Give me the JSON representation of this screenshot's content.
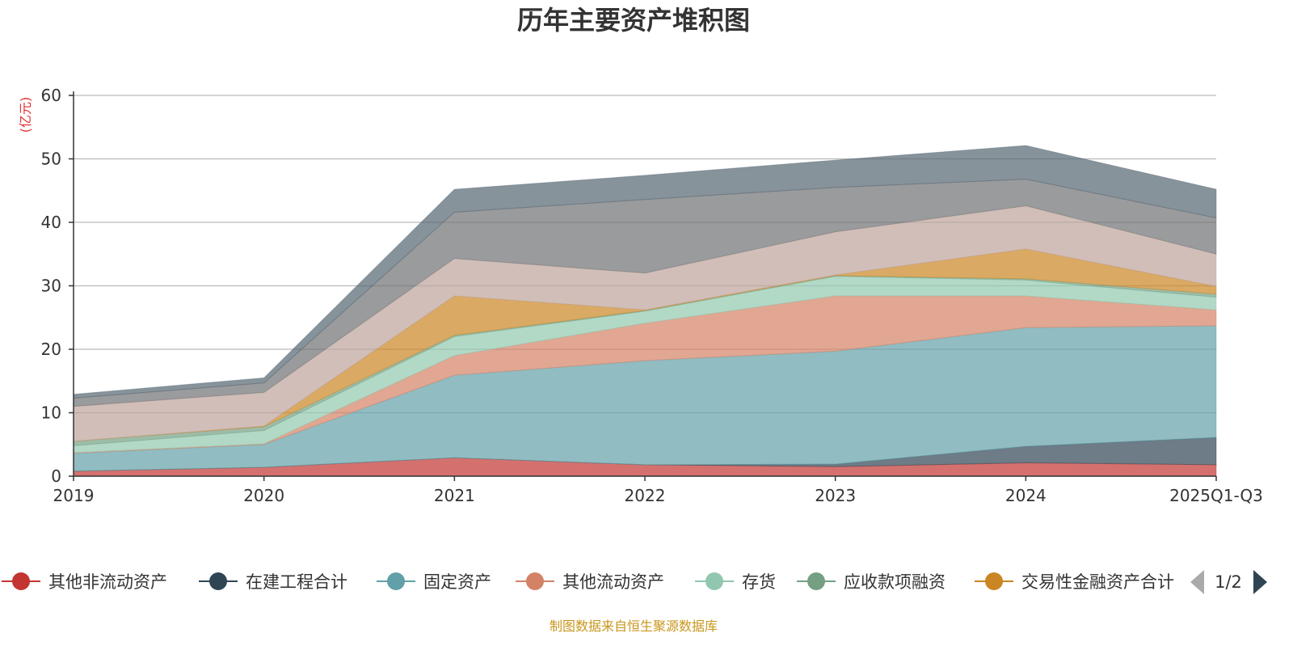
{
  "chart_data": {
    "type": "area",
    "stacked": true,
    "title": "历年主要资产堆积图",
    "ylabel": "(亿元)",
    "xlabel": "",
    "ylim": [
      0,
      60
    ],
    "yticks": [
      0,
      10,
      20,
      30,
      40,
      50,
      60
    ],
    "grid": true,
    "categories": [
      "2019",
      "2020",
      "2021",
      "2022",
      "2023",
      "2024",
      "2025Q1-Q3"
    ],
    "series": [
      {
        "name": "其他非流动资产",
        "color": "#c23531",
        "values": [
          0.8,
          1.4,
          2.9,
          1.8,
          1.5,
          2.1,
          1.8
        ]
      },
      {
        "name": "在建工程合计",
        "color": "#2f4554",
        "values": [
          0,
          0,
          0,
          0,
          0.4,
          2.6,
          4.3
        ]
      },
      {
        "name": "固定资产",
        "color": "#61a0a8",
        "values": [
          2.8,
          3.6,
          13.0,
          16.4,
          17.8,
          18.7,
          17.6
        ]
      },
      {
        "name": "其他流动资产",
        "color": "#d48265",
        "values": [
          0.1,
          0.1,
          3.1,
          5.9,
          8.7,
          5.0,
          2.5
        ]
      },
      {
        "name": "存货",
        "color": "#91c7ae",
        "values": [
          1.1,
          2.1,
          3.0,
          1.9,
          3.1,
          2.5,
          2.0
        ]
      },
      {
        "name": "应收款项融资",
        "color": "#749f83",
        "values": [
          0.7,
          0.6,
          0.2,
          0.1,
          0.1,
          0.2,
          0.5
        ]
      },
      {
        "name": "交易性金融资产合计",
        "color": "#ca8622",
        "values": [
          0,
          0.1,
          6.2,
          0.1,
          0.1,
          4.7,
          1.2
        ]
      },
      {
        "name": "",
        "color": "#bda29a",
        "values": [
          5.5,
          5.3,
          5.9,
          5.8,
          6.8,
          6.8,
          5.1
        ]
      },
      {
        "name": "",
        "color": "#6e7074",
        "values": [
          1.3,
          1.5,
          7.3,
          11.6,
          7.0,
          4.2,
          5.7
        ]
      },
      {
        "name": "",
        "color": "#546570",
        "values": [
          0.6,
          0.8,
          3.6,
          3.8,
          4.3,
          5.3,
          4.5
        ]
      }
    ],
    "legend": {
      "placement": "bottom",
      "page": "1/2"
    }
  },
  "footer": {
    "source": "制图数据来自恒生聚源数据库"
  }
}
